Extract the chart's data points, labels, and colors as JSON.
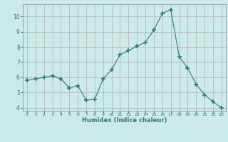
{
  "x": [
    0,
    1,
    2,
    3,
    4,
    5,
    6,
    7,
    8,
    9,
    10,
    11,
    12,
    13,
    14,
    15,
    16,
    17,
    18,
    19,
    20,
    21,
    22,
    23
  ],
  "y": [
    5.8,
    5.9,
    6.0,
    6.1,
    5.9,
    5.3,
    5.45,
    4.5,
    4.55,
    5.9,
    6.5,
    7.5,
    7.75,
    8.05,
    8.3,
    9.1,
    10.2,
    10.45,
    7.35,
    6.6,
    5.55,
    4.85,
    4.4,
    4.0
  ],
  "xlabel": "Humidex (Indice chaleur)",
  "xlim": [
    -0.5,
    23.5
  ],
  "ylim": [
    3.8,
    10.8
  ],
  "yticks": [
    4,
    5,
    6,
    7,
    8,
    9,
    10
  ],
  "xticks": [
    0,
    1,
    2,
    3,
    4,
    5,
    6,
    7,
    8,
    9,
    10,
    11,
    12,
    13,
    14,
    15,
    16,
    17,
    18,
    19,
    20,
    21,
    22,
    23
  ],
  "line_color": "#2e7d6e",
  "marker_color": "#2e7d6e",
  "bg_color": "#cceae7",
  "grid_color": "#b0b0b0",
  "tick_label_color": "#2e7d6e",
  "xlabel_color": "#2e7d6e"
}
